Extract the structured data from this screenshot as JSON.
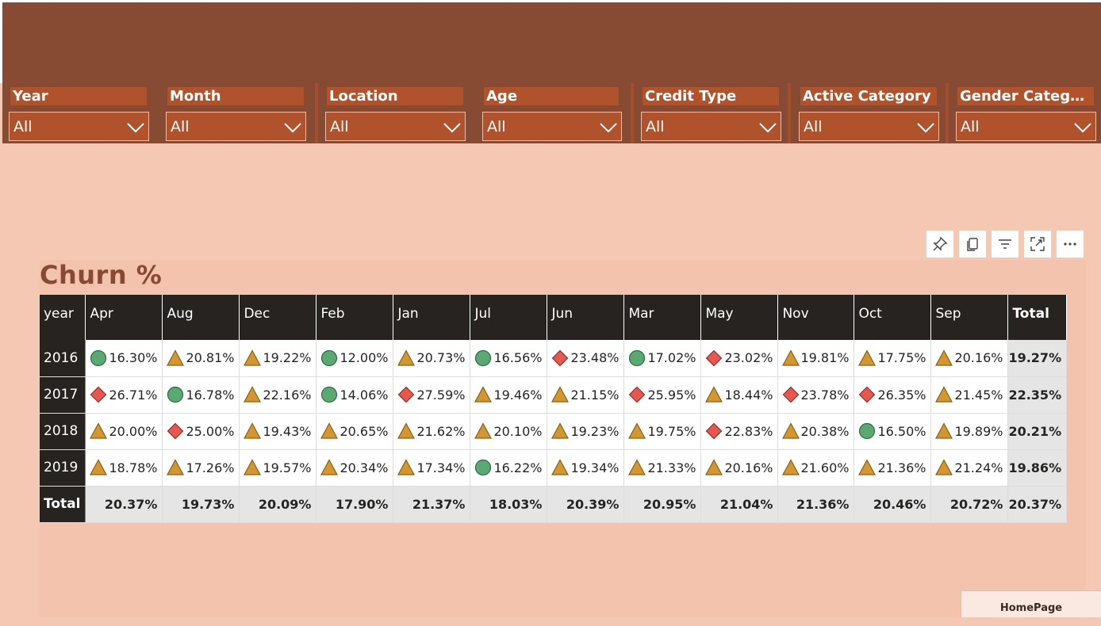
{
  "filters": [
    {
      "title": "Year",
      "value": "All"
    },
    {
      "title": "Month",
      "value": "All"
    },
    {
      "title": "Location",
      "value": "All"
    },
    {
      "title": "Age",
      "value": "All"
    },
    {
      "title": "Credit Type",
      "value": "All"
    },
    {
      "title": "Active Category",
      "value": "All"
    },
    {
      "title": "Gender Catego...",
      "value": "All"
    }
  ],
  "toolbar": [
    "pin-icon",
    "copy-icon",
    "filter-icon",
    "focus-mode-icon",
    "more-options-icon"
  ],
  "visual_title": "Churn %",
  "table": {
    "corner": "year",
    "columns": [
      "Apr",
      "Aug",
      "Dec",
      "Feb",
      "Jan",
      "Jul",
      "Jun",
      "Mar",
      "May",
      "Nov",
      "Oct",
      "Sep"
    ],
    "total_label": "Total",
    "rows": [
      {
        "year": "2016",
        "cells": [
          {
            "v": "16.30%",
            "i": "circle"
          },
          {
            "v": "20.81%",
            "i": "triangle"
          },
          {
            "v": "19.22%",
            "i": "triangle"
          },
          {
            "v": "12.00%",
            "i": "circle"
          },
          {
            "v": "20.73%",
            "i": "triangle"
          },
          {
            "v": "16.56%",
            "i": "circle"
          },
          {
            "v": "23.48%",
            "i": "diamond"
          },
          {
            "v": "17.02%",
            "i": "circle"
          },
          {
            "v": "23.02%",
            "i": "diamond"
          },
          {
            "v": "19.81%",
            "i": "triangle"
          },
          {
            "v": "17.75%",
            "i": "triangle"
          },
          {
            "v": "20.16%",
            "i": "triangle"
          }
        ],
        "total": "19.27%"
      },
      {
        "year": "2017",
        "cells": [
          {
            "v": "26.71%",
            "i": "diamond"
          },
          {
            "v": "16.78%",
            "i": "circle"
          },
          {
            "v": "22.16%",
            "i": "triangle"
          },
          {
            "v": "14.06%",
            "i": "circle"
          },
          {
            "v": "27.59%",
            "i": "diamond"
          },
          {
            "v": "19.46%",
            "i": "triangle"
          },
          {
            "v": "21.15%",
            "i": "triangle"
          },
          {
            "v": "25.95%",
            "i": "diamond"
          },
          {
            "v": "18.44%",
            "i": "triangle"
          },
          {
            "v": "23.78%",
            "i": "diamond"
          },
          {
            "v": "26.35%",
            "i": "diamond"
          },
          {
            "v": "21.45%",
            "i": "triangle"
          }
        ],
        "total": "22.35%"
      },
      {
        "year": "2018",
        "cells": [
          {
            "v": "20.00%",
            "i": "triangle"
          },
          {
            "v": "25.00%",
            "i": "diamond"
          },
          {
            "v": "19.43%",
            "i": "triangle"
          },
          {
            "v": "20.65%",
            "i": "triangle"
          },
          {
            "v": "21.62%",
            "i": "triangle"
          },
          {
            "v": "20.10%",
            "i": "triangle"
          },
          {
            "v": "19.23%",
            "i": "triangle"
          },
          {
            "v": "19.75%",
            "i": "triangle"
          },
          {
            "v": "22.83%",
            "i": "diamond"
          },
          {
            "v": "20.38%",
            "i": "triangle"
          },
          {
            "v": "16.50%",
            "i": "circle"
          },
          {
            "v": "19.89%",
            "i": "triangle"
          }
        ],
        "total": "20.21%"
      },
      {
        "year": "2019",
        "cells": [
          {
            "v": "18.78%",
            "i": "triangle"
          },
          {
            "v": "17.26%",
            "i": "triangle"
          },
          {
            "v": "19.57%",
            "i": "triangle"
          },
          {
            "v": "20.34%",
            "i": "triangle"
          },
          {
            "v": "17.34%",
            "i": "triangle"
          },
          {
            "v": "16.22%",
            "i": "circle"
          },
          {
            "v": "19.34%",
            "i": "triangle"
          },
          {
            "v": "21.33%",
            "i": "triangle"
          },
          {
            "v": "20.16%",
            "i": "triangle"
          },
          {
            "v": "21.60%",
            "i": "triangle"
          },
          {
            "v": "21.36%",
            "i": "triangle"
          },
          {
            "v": "21.24%",
            "i": "triangle"
          }
        ],
        "total": "19.86%"
      }
    ],
    "totals": [
      "20.37%",
      "19.73%",
      "20.09%",
      "17.90%",
      "21.37%",
      "18.03%",
      "20.39%",
      "20.95%",
      "21.04%",
      "21.36%",
      "20.46%",
      "20.72%"
    ],
    "grand_total": "20.37%"
  },
  "homepage_button": "HomePage",
  "colors": {
    "circle": "#5aa872",
    "triangle": "#d4972f",
    "diamond": "#e6574f"
  }
}
